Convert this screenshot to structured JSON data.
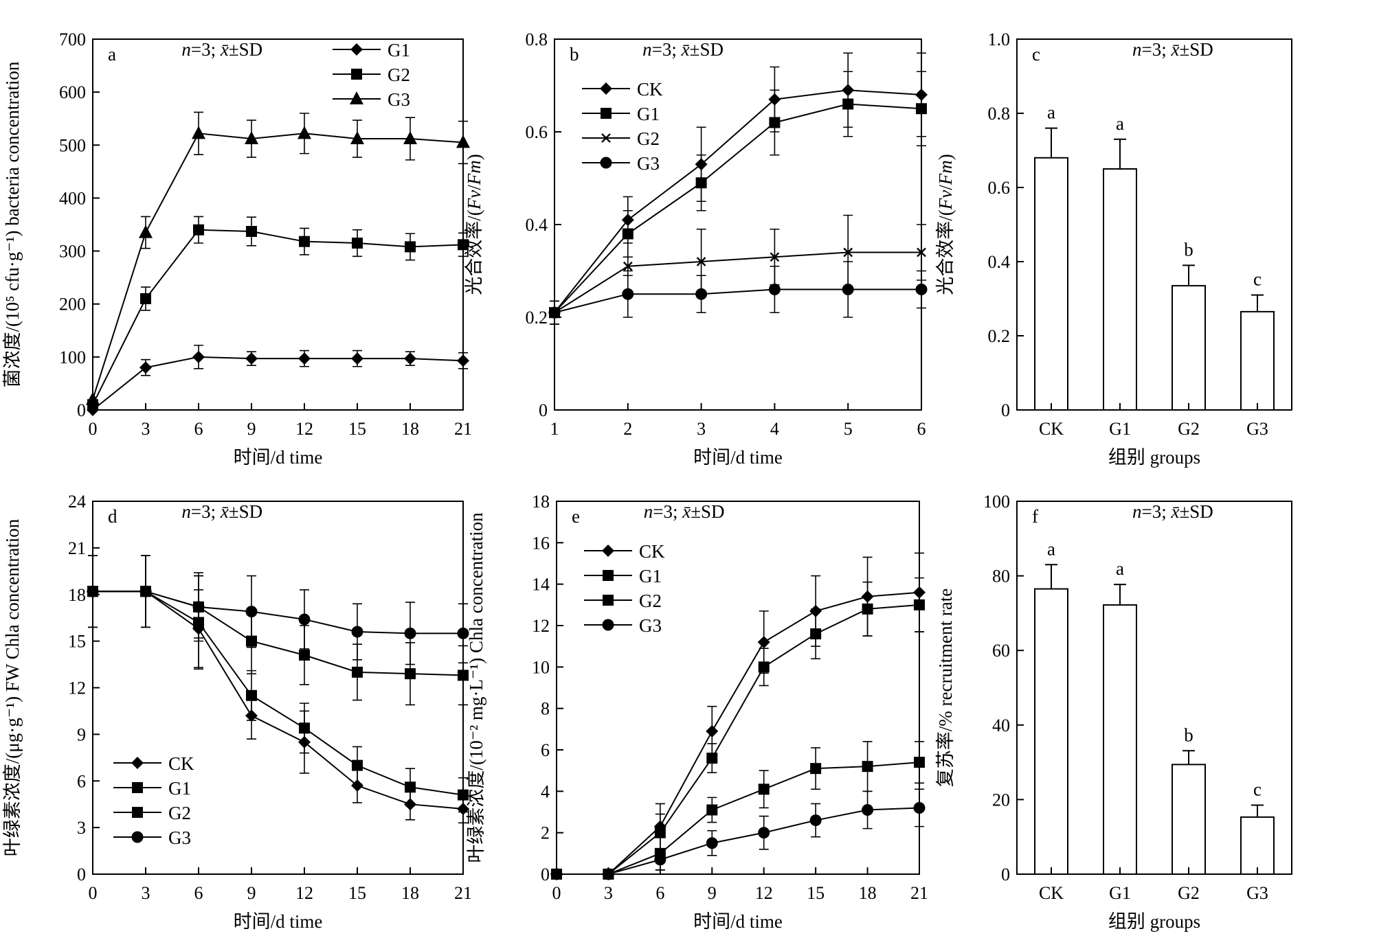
{
  "panels": [
    {
      "id": "a",
      "label": "a",
      "type": "line",
      "stat": "n=3; x̄±SD",
      "ylabel": "菌浓度/(10⁵ cfu·g⁻¹) bacteria  concentration",
      "xlabel": "时间/d time",
      "x": [
        0,
        3,
        6,
        9,
        12,
        15,
        18,
        21
      ],
      "xlim": [
        0,
        21
      ],
      "ylim": [
        0,
        700
      ],
      "xticks": [
        "0",
        "3",
        "6",
        "9",
        "12",
        "15",
        "18",
        "21"
      ],
      "yticks": [
        "0",
        "100",
        "200",
        "300",
        "400",
        "500",
        "600",
        "700"
      ],
      "legend": {
        "position": "top-right",
        "entries": [
          "G1",
          "G2",
          "G3"
        ]
      },
      "series": [
        {
          "name": "G1",
          "marker": "diamond",
          "values": [
            0,
            80,
            100,
            97,
            97,
            97,
            97,
            93
          ],
          "err": [
            0,
            15,
            22,
            13,
            15,
            15,
            13,
            15
          ]
        },
        {
          "name": "G2",
          "marker": "square",
          "values": [
            10,
            210,
            340,
            337,
            318,
            315,
            308,
            312
          ],
          "err": [
            0,
            22,
            25,
            27,
            25,
            25,
            25,
            22
          ]
        },
        {
          "name": "G3",
          "marker": "triangle",
          "values": [
            20,
            335,
            522,
            512,
            522,
            512,
            512,
            505
          ],
          "err": [
            0,
            30,
            40,
            35,
            38,
            35,
            40,
            40
          ]
        }
      ]
    },
    {
      "id": "b",
      "label": "b",
      "type": "line",
      "stat": "n=3; x̄±SD",
      "ylabel": "光合效率/(Fv/Fm)",
      "xlabel": "时间/d time",
      "x": [
        1,
        2,
        3,
        4,
        5,
        6
      ],
      "xlim": [
        1,
        6
      ],
      "ylim": [
        0,
        0.8
      ],
      "xticks": [
        "1",
        "2",
        "3",
        "4",
        "5",
        "6"
      ],
      "yticks": [
        "0",
        "0.2",
        "0.4",
        "0.6",
        "0.8"
      ],
      "legend": {
        "position": "top-left",
        "entries": [
          "CK",
          "G1",
          "G2",
          "G3"
        ]
      },
      "series": [
        {
          "name": "CK",
          "marker": "diamond",
          "values": [
            0.21,
            0.41,
            0.53,
            0.67,
            0.69,
            0.68
          ],
          "err": [
            0.025,
            0.05,
            0.08,
            0.07,
            0.08,
            0.09
          ]
        },
        {
          "name": "G1",
          "marker": "square",
          "values": [
            0.21,
            0.38,
            0.49,
            0.62,
            0.66,
            0.65
          ],
          "err": [
            0.025,
            0.05,
            0.06,
            0.07,
            0.07,
            0.08
          ]
        },
        {
          "name": "G2",
          "marker": "cross",
          "values": [
            0.21,
            0.31,
            0.32,
            0.33,
            0.34,
            0.34
          ],
          "err": [
            0.025,
            0.02,
            0.07,
            0.06,
            0.08,
            0.06
          ]
        },
        {
          "name": "G3",
          "marker": "circle",
          "values": [
            0.21,
            0.25,
            0.25,
            0.26,
            0.26,
            0.26
          ],
          "err": [
            0.025,
            0.05,
            0.04,
            0.05,
            0.06,
            0.04
          ]
        }
      ]
    },
    {
      "id": "c",
      "label": "c",
      "type": "bar",
      "stat": "n=3; x̄±SD",
      "ylabel": "光合效率/(Fv/Fm)",
      "xlabel": "组别 groups",
      "categories": [
        "CK",
        "G1",
        "G2",
        "G3"
      ],
      "ylim": [
        0,
        1.0
      ],
      "yticks": [
        "0",
        "0.2",
        "0.4",
        "0.6",
        "0.8",
        "1.0"
      ],
      "values": [
        0.68,
        0.65,
        0.335,
        0.265
      ],
      "err": [
        0.08,
        0.08,
        0.055,
        0.045
      ],
      "sig": [
        "a",
        "a",
        "b",
        "c"
      ]
    },
    {
      "id": "d",
      "label": "d",
      "type": "line",
      "stat": "n=3; x̄±SD",
      "ylabel": "叶绿素浓度/(μg·g⁻¹) FW Chla concentration",
      "xlabel": "时间/d time",
      "x": [
        0,
        3,
        6,
        9,
        12,
        15,
        18,
        21
      ],
      "xlim": [
        0,
        21
      ],
      "ylim": [
        0,
        24
      ],
      "xticks": [
        "0",
        "3",
        "6",
        "9",
        "12",
        "15",
        "18",
        "21"
      ],
      "yticks": [
        "0",
        "3",
        "6",
        "9",
        "12",
        "15",
        "18",
        "21",
        "24"
      ],
      "legend": {
        "position": "bottom-left",
        "entries": [
          "CK",
          "G1",
          "G2",
          "G3"
        ]
      },
      "series": [
        {
          "name": "CK",
          "marker": "diamond",
          "values": [
            18.2,
            18.2,
            15.8,
            10.2,
            8.5,
            5.7,
            4.5,
            4.2
          ],
          "err": [
            2.3,
            2.3,
            2.5,
            1.5,
            2.0,
            1.1,
            1.0,
            0.9
          ]
        },
        {
          "name": "G1",
          "marker": "square",
          "values": [
            18.2,
            18.2,
            16.2,
            11.5,
            9.4,
            7.0,
            5.6,
            5.1
          ],
          "err": [
            2.3,
            2.3,
            3.0,
            1.6,
            1.6,
            1.2,
            1.2,
            1.1
          ]
        },
        {
          "name": "G2",
          "marker": "square",
          "values": [
            18.2,
            18.2,
            17.2,
            15.0,
            14.1,
            13.0,
            12.9,
            12.8
          ],
          "err": [
            2.3,
            2.3,
            2.2,
            2.1,
            1.9,
            1.8,
            2.0,
            1.9
          ]
        },
        {
          "name": "G3",
          "marker": "circle",
          "values": [
            18.2,
            18.2,
            17.2,
            16.9,
            16.4,
            15.6,
            15.5,
            15.5
          ],
          "err": [
            2.3,
            2.3,
            2.0,
            2.3,
            1.9,
            1.8,
            2.0,
            1.9
          ]
        }
      ]
    },
    {
      "id": "e",
      "label": "e",
      "type": "line",
      "stat": "n=3; x̄±SD",
      "ylabel": "叶绿素浓度/(10⁻² mg·L⁻¹) Chla concentration",
      "xlabel": "时间/d time",
      "x": [
        0,
        3,
        6,
        9,
        12,
        15,
        18,
        21
      ],
      "xlim": [
        0,
        21
      ],
      "ylim": [
        0,
        18
      ],
      "xticks": [
        "0",
        "3",
        "6",
        "9",
        "12",
        "15",
        "18",
        "21"
      ],
      "yticks": [
        "0",
        "2",
        "4",
        "6",
        "8",
        "10",
        "12",
        "14",
        "16",
        "18"
      ],
      "legend": {
        "position": "top-left",
        "entries": [
          "CK",
          "G1",
          "G2",
          "G3"
        ]
      },
      "series": [
        {
          "name": "CK",
          "marker": "diamond",
          "values": [
            0,
            0,
            2.3,
            6.9,
            11.2,
            12.7,
            13.4,
            13.6
          ],
          "err": [
            0,
            0,
            1.1,
            1.2,
            1.5,
            1.7,
            1.9,
            1.9
          ]
        },
        {
          "name": "G1",
          "marker": "square",
          "values": [
            0,
            0,
            2.0,
            5.6,
            10.0,
            11.6,
            12.8,
            13.0
          ],
          "err": [
            0,
            0,
            0.9,
            0.7,
            0.9,
            1.2,
            1.3,
            1.3
          ]
        },
        {
          "name": "G2",
          "marker": "square",
          "values": [
            0,
            0,
            1.0,
            3.1,
            4.1,
            5.1,
            5.2,
            5.4
          ],
          "err": [
            0,
            0,
            0.8,
            0.6,
            0.9,
            1.0,
            1.2,
            1.0
          ]
        },
        {
          "name": "G3",
          "marker": "circle",
          "values": [
            0,
            0,
            0.7,
            1.5,
            2.0,
            2.6,
            3.1,
            3.2
          ],
          "err": [
            0,
            0,
            0.5,
            0.6,
            0.8,
            0.8,
            0.9,
            0.9
          ]
        }
      ]
    },
    {
      "id": "f",
      "label": "f",
      "type": "bar",
      "stat": "n=3; x̄±SD",
      "ylabel": "复苏率/% recruitment rate",
      "xlabel": "组别 groups",
      "categories": [
        "CK",
        "G1",
        "G2",
        "G3"
      ],
      "ylim": [
        0,
        100
      ],
      "yticks": [
        "0",
        "20",
        "40",
        "60",
        "80",
        "100"
      ],
      "values": [
        76.5,
        72.2,
        29.4,
        15.3
      ],
      "err": [
        6.5,
        5.5,
        3.7,
        3.2
      ],
      "sig": [
        "a",
        "a",
        "b",
        "c"
      ]
    }
  ],
  "chart_data": [
    {
      "panel": "a",
      "type": "line",
      "xlabel": "时间/d time",
      "ylabel": "菌浓度/(10⁵ cfu·g⁻¹) bacteria  concentration",
      "x": [
        0,
        3,
        6,
        9,
        12,
        15,
        18,
        21
      ],
      "xlim": [
        0,
        21
      ],
      "ylim": [
        0,
        700
      ],
      "legend": "top-right",
      "series": [
        {
          "name": "G1",
          "values": [
            0,
            80,
            100,
            97,
            97,
            97,
            97,
            93
          ]
        },
        {
          "name": "G2",
          "values": [
            10,
            210,
            340,
            337,
            318,
            315,
            308,
            312
          ]
        },
        {
          "name": "G3",
          "values": [
            20,
            335,
            522,
            512,
            522,
            512,
            512,
            505
          ]
        }
      ]
    },
    {
      "panel": "b",
      "type": "line",
      "xlabel": "时间/d time",
      "ylabel": "光合效率/(Fv/Fm)",
      "x": [
        1,
        2,
        3,
        4,
        5,
        6
      ],
      "xlim": [
        1,
        6
      ],
      "ylim": [
        0,
        0.8
      ],
      "legend": "top-left",
      "series": [
        {
          "name": "CK",
          "values": [
            0.21,
            0.41,
            0.53,
            0.67,
            0.69,
            0.68
          ]
        },
        {
          "name": "G1",
          "values": [
            0.21,
            0.38,
            0.49,
            0.62,
            0.66,
            0.65
          ]
        },
        {
          "name": "G2",
          "values": [
            0.21,
            0.31,
            0.32,
            0.33,
            0.34,
            0.34
          ]
        },
        {
          "name": "G3",
          "values": [
            0.21,
            0.25,
            0.25,
            0.26,
            0.26,
            0.26
          ]
        }
      ]
    },
    {
      "panel": "c",
      "type": "bar",
      "xlabel": "组别 groups",
      "ylabel": "光合效率/(Fv/Fm)",
      "categories": [
        "CK",
        "G1",
        "G2",
        "G3"
      ],
      "values": [
        0.68,
        0.65,
        0.335,
        0.265
      ],
      "ylim": [
        0,
        1.0
      ]
    },
    {
      "panel": "d",
      "type": "line",
      "xlabel": "时间/d time",
      "ylabel": "叶绿素浓度/(μg·g⁻¹) FW Chla concentration",
      "x": [
        0,
        3,
        6,
        9,
        12,
        15,
        18,
        21
      ],
      "xlim": [
        0,
        21
      ],
      "ylim": [
        0,
        24
      ],
      "legend": "bottom-left",
      "series": [
        {
          "name": "CK",
          "values": [
            18.2,
            18.2,
            15.8,
            10.2,
            8.5,
            5.7,
            4.5,
            4.2
          ]
        },
        {
          "name": "G1",
          "values": [
            18.2,
            18.2,
            16.2,
            11.5,
            9.4,
            7.0,
            5.6,
            5.1
          ]
        },
        {
          "name": "G2",
          "values": [
            18.2,
            18.2,
            17.2,
            15.0,
            14.1,
            13.0,
            12.9,
            12.8
          ]
        },
        {
          "name": "G3",
          "values": [
            18.2,
            18.2,
            17.2,
            16.9,
            16.4,
            15.6,
            15.5,
            15.5
          ]
        }
      ]
    },
    {
      "panel": "e",
      "type": "line",
      "xlabel": "时间/d time",
      "ylabel": "叶绿素浓度/(10⁻² mg·L⁻¹) Chla concentration",
      "x": [
        0,
        3,
        6,
        9,
        12,
        15,
        18,
        21
      ],
      "xlim": [
        0,
        21
      ],
      "ylim": [
        0,
        18
      ],
      "legend": "top-left",
      "series": [
        {
          "name": "CK",
          "values": [
            0,
            0,
            2.3,
            6.9,
            11.2,
            12.7,
            13.4,
            13.6
          ]
        },
        {
          "name": "G1",
          "values": [
            0,
            0,
            2.0,
            5.6,
            10.0,
            11.6,
            12.8,
            13.0
          ]
        },
        {
          "name": "G2",
          "values": [
            0,
            0,
            1.0,
            3.1,
            4.1,
            5.1,
            5.2,
            5.4
          ]
        },
        {
          "name": "G3",
          "values": [
            0,
            0,
            0.7,
            1.5,
            2.0,
            2.6,
            3.1,
            3.2
          ]
        }
      ]
    },
    {
      "panel": "f",
      "type": "bar",
      "xlabel": "组别 groups",
      "ylabel": "复苏率/% recruitment rate",
      "categories": [
        "CK",
        "G1",
        "G2",
        "G3"
      ],
      "values": [
        76.5,
        72.2,
        29.4,
        15.3
      ],
      "ylim": [
        0,
        100
      ]
    }
  ]
}
